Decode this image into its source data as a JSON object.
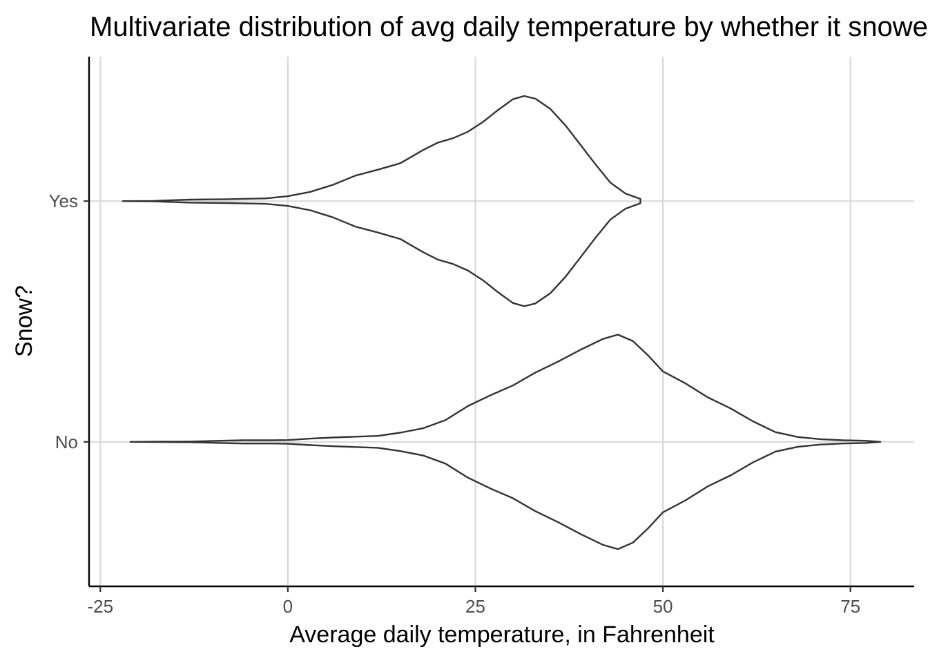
{
  "chart_data": {
    "type": "violin",
    "title": "Multivariate distribution of avg daily temperature by whether it snowed",
    "xlabel": "Average daily temperature, in Fahrenheit",
    "ylabel": "Snow?",
    "xlim": [
      -26.5,
      83.5
    ],
    "x_ticks": [
      -25,
      0,
      25,
      50,
      75
    ],
    "x_tick_labels": [
      "-25",
      "0",
      "25",
      "50",
      "75"
    ],
    "categories": [
      "No",
      "Yes"
    ],
    "grid": true,
    "series": [
      {
        "category": "Yes",
        "density_profile": [
          [
            -22,
            0.0
          ],
          [
            -18,
            0.002
          ],
          [
            -13,
            0.014
          ],
          [
            -8,
            0.018
          ],
          [
            -3,
            0.025
          ],
          [
            0,
            0.045
          ],
          [
            3,
            0.085
          ],
          [
            6,
            0.15
          ],
          [
            9,
            0.235
          ],
          [
            12,
            0.29
          ],
          [
            15,
            0.35
          ],
          [
            18,
            0.47
          ],
          [
            20,
            0.54
          ],
          [
            22,
            0.58
          ],
          [
            24,
            0.64
          ],
          [
            26,
            0.73
          ],
          [
            28,
            0.84
          ],
          [
            30,
            0.94
          ],
          [
            31.5,
            0.97
          ],
          [
            33,
            0.945
          ],
          [
            35,
            0.85
          ],
          [
            37,
            0.7
          ],
          [
            39,
            0.52
          ],
          [
            41,
            0.34
          ],
          [
            43,
            0.17
          ],
          [
            45,
            0.07
          ],
          [
            47,
            0.02
          ],
          [
            47,
            0.0
          ]
        ]
      },
      {
        "category": "No",
        "density_profile": [
          [
            -21,
            0.0
          ],
          [
            -17,
            0.002
          ],
          [
            -13,
            0.003
          ],
          [
            -9,
            0.01
          ],
          [
            -6,
            0.015
          ],
          [
            -2,
            0.015
          ],
          [
            0,
            0.017
          ],
          [
            3,
            0.03
          ],
          [
            6,
            0.04
          ],
          [
            9,
            0.048
          ],
          [
            12,
            0.055
          ],
          [
            15,
            0.085
          ],
          [
            18,
            0.125
          ],
          [
            21,
            0.2
          ],
          [
            24,
            0.33
          ],
          [
            27,
            0.43
          ],
          [
            30,
            0.52
          ],
          [
            33,
            0.64
          ],
          [
            36,
            0.74
          ],
          [
            39,
            0.85
          ],
          [
            42,
            0.95
          ],
          [
            44,
            0.99
          ],
          [
            46,
            0.93
          ],
          [
            48,
            0.8
          ],
          [
            50,
            0.65
          ],
          [
            53,
            0.54
          ],
          [
            56,
            0.41
          ],
          [
            59,
            0.31
          ],
          [
            62,
            0.19
          ],
          [
            65,
            0.09
          ],
          [
            68,
            0.045
          ],
          [
            71,
            0.025
          ],
          [
            74,
            0.015
          ],
          [
            77,
            0.01
          ],
          [
            79,
            0.0
          ]
        ]
      }
    ]
  }
}
